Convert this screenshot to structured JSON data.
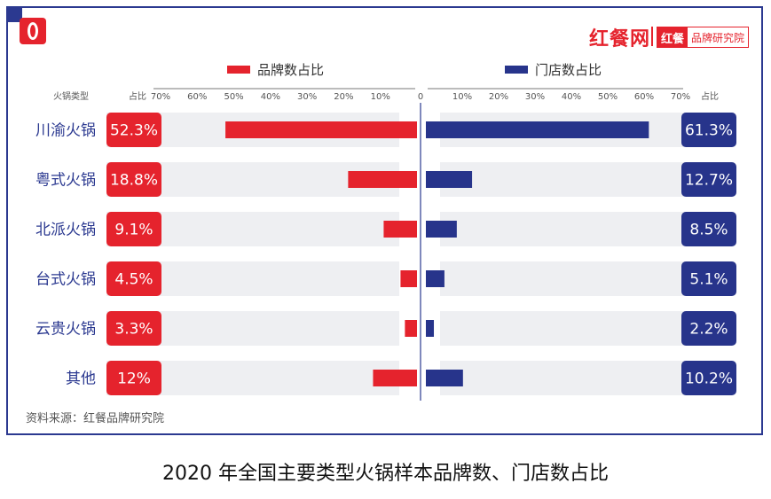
{
  "brand": {
    "name": "红餐网",
    "tag_left": "红餐",
    "tag_right": "品牌研究院"
  },
  "legend": {
    "brand_label": "品牌数占比",
    "store_label": "门店数占比"
  },
  "axis": {
    "category_header": "火锅类型",
    "left_pct_header": "占比",
    "right_pct_header": "占比"
  },
  "source": "资料来源：红餐品牌研究院",
  "caption": "2020 年全国主要类型火锅样本品牌数、门店数占比",
  "colors": {
    "brand": "#e5232d",
    "store": "#27348b",
    "row_bg": "#eeeff2",
    "frame": "#2b3990"
  },
  "chart_data": {
    "type": "bar",
    "orientation": "horizontal-diverging",
    "categories": [
      "川渝火锅",
      "粤式火锅",
      "北派火锅",
      "台式火锅",
      "云贵火锅",
      "其他"
    ],
    "series": [
      {
        "name": "品牌数占比",
        "values": [
          52.3,
          18.8,
          9.1,
          4.5,
          3.3,
          12
        ],
        "labels": [
          "52.3%",
          "18.8%",
          "9.1%",
          "4.5%",
          "3.3%",
          "12%"
        ],
        "direction": "left"
      },
      {
        "name": "门店数占比",
        "values": [
          61.3,
          12.7,
          8.5,
          5.1,
          2.2,
          10.2
        ],
        "labels": [
          "61.3%",
          "12.7%",
          "8.5%",
          "5.1%",
          "2.2%",
          "10.2%"
        ],
        "direction": "right"
      }
    ],
    "xlim": [
      0,
      70
    ],
    "ticks_left": [
      "70%",
      "60%",
      "50%",
      "40%",
      "30%",
      "20%",
      "10%"
    ],
    "ticks_center": "0",
    "ticks_right": [
      "10%",
      "20%",
      "30%",
      "40%",
      "50%",
      "60%",
      "70%"
    ],
    "tick_values": [
      10,
      20,
      30,
      40,
      50,
      60,
      70
    ]
  }
}
